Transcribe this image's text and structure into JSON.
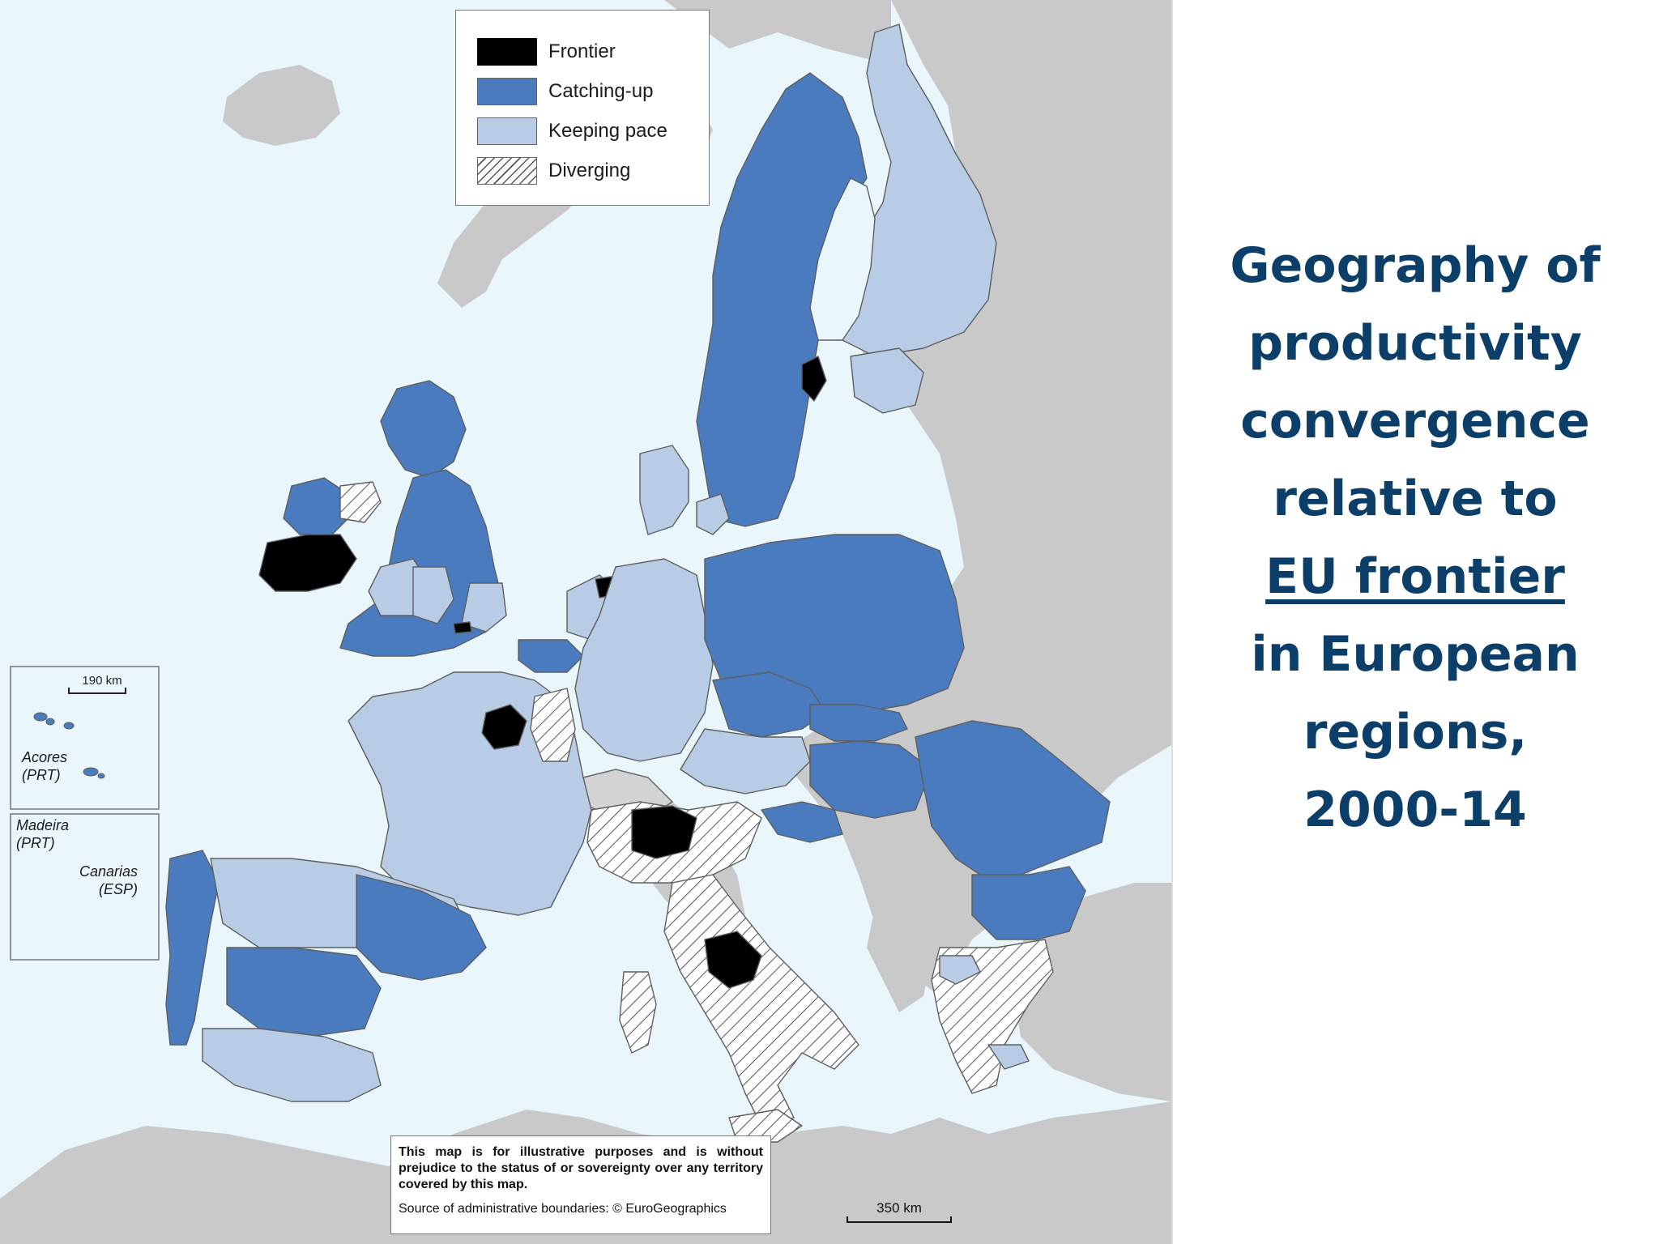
{
  "colors": {
    "sea": "#e9f6fc",
    "non_eu_land": "#c9c9c9",
    "frontier": "#000000",
    "catching_up": "#4a7bbe",
    "keeping_pace": "#b9cce6",
    "diverging": "#ffffff",
    "title": "#0b3e68"
  },
  "legend": {
    "items": [
      {
        "label": "Frontier",
        "swatch": "frontier"
      },
      {
        "label": "Catching-up",
        "swatch": "catching-up"
      },
      {
        "label": "Keeping pace",
        "swatch": "keeping-pace"
      },
      {
        "label": "Diverging",
        "swatch": "diverging"
      }
    ]
  },
  "insets": {
    "azores": {
      "scale_label": "190 km",
      "name": "Acores",
      "country": "(PRT)"
    },
    "madeira": {
      "name": "Madeira",
      "country": "(PRT)"
    },
    "canarias": {
      "name": "Canarias",
      "country": "(ESP)"
    }
  },
  "disclaimer": {
    "text": "This map is for illustrative purposes and is without prejudice to the status of or sovereignty over any territory covered by this map.",
    "source": "Source of administrative boundaries:  © EuroGeographics"
  },
  "scale_bar": {
    "label": "350 km"
  },
  "title": {
    "line1": "Geography of",
    "line2": "productivity",
    "line3": "convergence",
    "line4": "relative to",
    "line5": "EU frontier",
    "line6": "in European",
    "line7": "regions,",
    "line8": "2000-14"
  }
}
